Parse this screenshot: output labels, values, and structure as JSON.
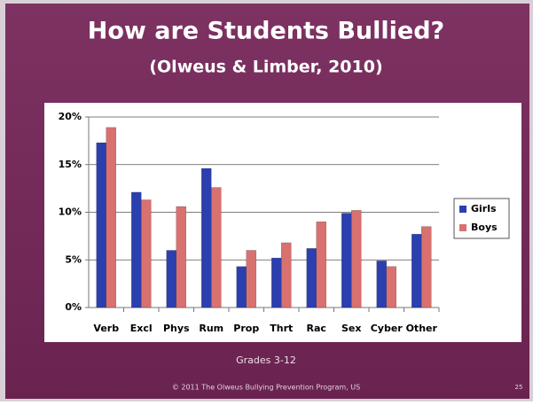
{
  "chart_data": {
    "type": "bar",
    "title": "How are Students Bullied?",
    "subtitle": "(Olweus & Limber, 2010)",
    "x_label": "Grades 3-12",
    "footer": "© 2011 The Olweus Bullying Prevention Program, US",
    "page_number": "25",
    "categories": [
      "Verb",
      "Excl",
      "Phys",
      "Rum",
      "Prop",
      "Thrt",
      "Rac",
      "Sex",
      "Cyber",
      "Other"
    ],
    "series": [
      {
        "name": "Girls",
        "color": "#2b3fae",
        "values": [
          17.3,
          12.1,
          6.0,
          14.6,
          4.3,
          5.2,
          6.2,
          9.9,
          4.9,
          7.7
        ]
      },
      {
        "name": "Boys",
        "color": "#d8716f",
        "values": [
          18.9,
          11.3,
          10.6,
          12.6,
          6.0,
          6.8,
          9.0,
          10.2,
          4.3,
          8.5
        ]
      }
    ],
    "ylim": [
      0,
      20
    ],
    "yticks": [
      {
        "value": 0,
        "label": "0%"
      },
      {
        "value": 5,
        "label": "5%"
      },
      {
        "value": 10,
        "label": "10%"
      },
      {
        "value": 15,
        "label": "15%"
      },
      {
        "value": 20,
        "label": "20%"
      }
    ],
    "grid": true,
    "legend": "right"
  }
}
